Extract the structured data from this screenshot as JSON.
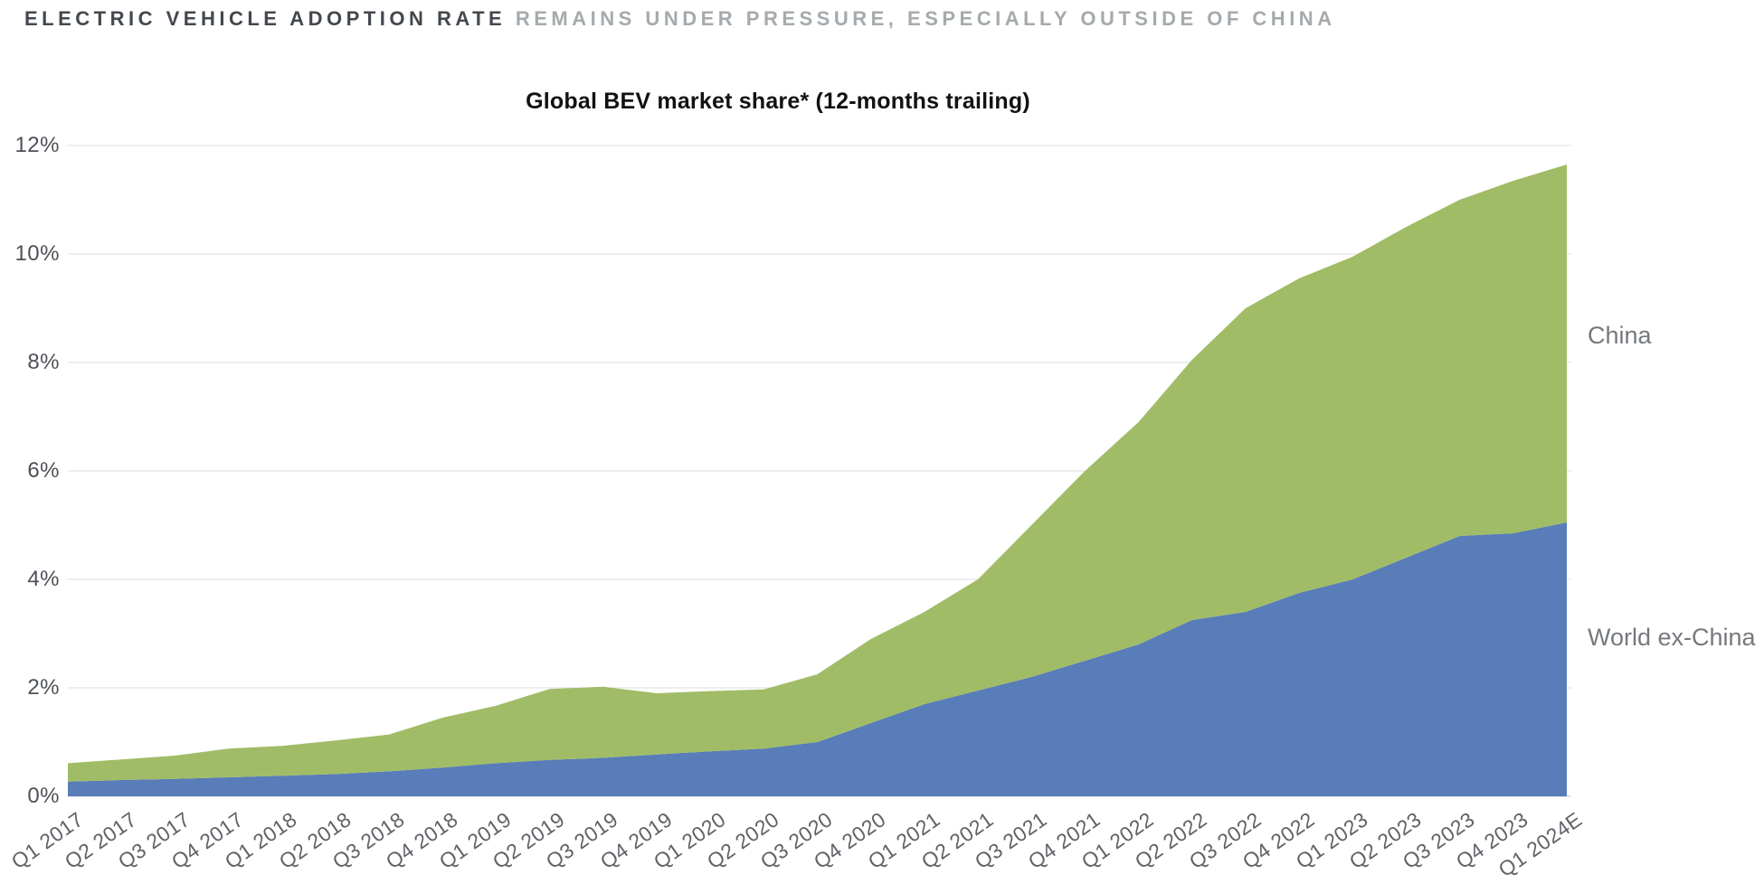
{
  "header": {
    "emphasis": "ELECTRIC VEHICLE ADOPTION RATE",
    "rest": "REMAINS UNDER PRESSURE, ESPECIALLY OUTSIDE OF CHINA"
  },
  "chart_data": {
    "type": "area",
    "stacked": true,
    "title": "Global BEV market share* (12-months trailing)",
    "unit": "percent",
    "categories": [
      "Q1 2017",
      "Q2 2017",
      "Q3 2017",
      "Q4 2017",
      "Q1 2018",
      "Q2 2018",
      "Q3 2018",
      "Q4 2018",
      "Q1 2019",
      "Q2 2019",
      "Q3 2019",
      "Q4 2019",
      "Q1 2020",
      "Q2 2020",
      "Q3 2020",
      "Q4 2020",
      "Q1 2021",
      "Q2 2021",
      "Q3 2021",
      "Q4 2021",
      "Q1 2022",
      "Q2 2022",
      "Q3 2022",
      "Q4 2022",
      "Q1 2023",
      "Q2 2023",
      "Q3 2023",
      "Q4 2023",
      "Q1 2024E"
    ],
    "series": [
      {
        "name": "World ex-China",
        "color": "#587db8",
        "values": [
          0.27,
          0.3,
          0.32,
          0.35,
          0.38,
          0.41,
          0.46,
          0.53,
          0.61,
          0.67,
          0.71,
          0.77,
          0.83,
          0.88,
          1.0,
          1.35,
          1.7,
          1.95,
          2.2,
          2.5,
          2.8,
          3.25,
          3.4,
          3.75,
          4.0,
          4.4,
          4.8,
          4.85,
          5.05
        ]
      },
      {
        "name": "China",
        "color": "#a1bc66",
        "values": [
          0.34,
          0.38,
          0.43,
          0.53,
          0.55,
          0.62,
          0.68,
          0.92,
          1.06,
          1.31,
          1.31,
          1.13,
          1.11,
          1.09,
          1.25,
          1.55,
          1.7,
          2.05,
          2.8,
          3.5,
          4.1,
          4.8,
          5.6,
          5.8,
          5.95,
          6.1,
          6.2,
          6.5,
          6.6
        ]
      }
    ],
    "totals": [
      0.61,
      0.68,
      0.75,
      0.88,
      0.93,
      1.03,
      1.14,
      1.45,
      1.67,
      1.98,
      2.02,
      1.9,
      1.94,
      1.97,
      2.25,
      2.9,
      3.4,
      4.0,
      5.0,
      6.0,
      6.9,
      8.05,
      9.0,
      9.55,
      9.95,
      10.5,
      11.0,
      11.35,
      11.65
    ],
    "y_ticks": [
      "0%",
      "2%",
      "4%",
      "6%",
      "8%",
      "10%",
      "12%"
    ],
    "ylim": [
      0,
      12
    ],
    "grid": true,
    "legend": {
      "position": "right-edge-labels",
      "labels": [
        "China",
        "World ex-China"
      ]
    }
  },
  "colors": {
    "china_area": "#a1bc66",
    "world_ex_china_area": "#587db8",
    "gridline": "#e4e4e4",
    "axis_line": "#cfd3d6",
    "header_emphasis": "#43484d",
    "header_rest": "#a5aaad",
    "tick_label": "#4d5156",
    "series_label": "#75797d"
  }
}
